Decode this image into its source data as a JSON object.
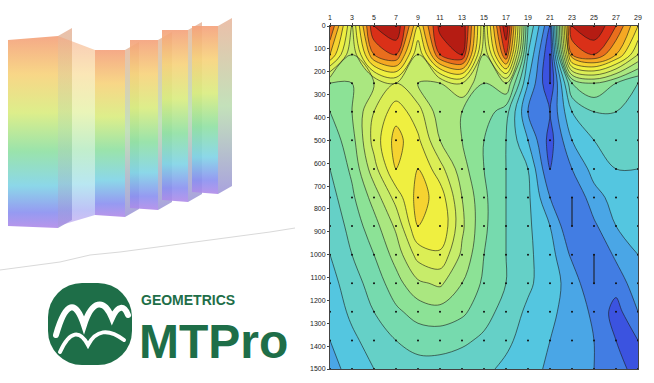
{
  "chart_data": {
    "type": "contour",
    "x": [
      1,
      3,
      5,
      7,
      9,
      11,
      13,
      15,
      17,
      19,
      21,
      23,
      25,
      27,
      29
    ],
    "y": [
      0,
      125,
      250,
      375,
      500,
      625,
      750,
      875,
      1000,
      1125,
      1250,
      1375,
      1500
    ],
    "z": [
      [
        85,
        60,
        90,
        95,
        70,
        92,
        95,
        60,
        95,
        40,
        20,
        90,
        95,
        85,
        70
      ],
      [
        75,
        55,
        80,
        85,
        60,
        85,
        90,
        55,
        85,
        35,
        15,
        80,
        85,
        75,
        60
      ],
      [
        50,
        50,
        55,
        60,
        55,
        55,
        60,
        50,
        55,
        30,
        15,
        45,
        50,
        45,
        40
      ],
      [
        45,
        50,
        60,
        68,
        62,
        52,
        50,
        48,
        42,
        25,
        20,
        35,
        40,
        40,
        38
      ],
      [
        42,
        48,
        62,
        72,
        66,
        55,
        50,
        45,
        40,
        30,
        18,
        30,
        35,
        38,
        36
      ],
      [
        40,
        46,
        58,
        70,
        70,
        62,
        52,
        45,
        40,
        35,
        20,
        25,
        32,
        35,
        35
      ],
      [
        38,
        44,
        52,
        62,
        72,
        68,
        55,
        46,
        40,
        36,
        25,
        20,
        28,
        32,
        33
      ],
      [
        36,
        42,
        48,
        56,
        70,
        70,
        56,
        46,
        40,
        36,
        30,
        20,
        24,
        30,
        32
      ],
      [
        35,
        40,
        45,
        52,
        62,
        64,
        54,
        45,
        40,
        36,
        32,
        24,
        20,
        26,
        30
      ],
      [
        33,
        38,
        42,
        48,
        54,
        56,
        50,
        44,
        40,
        36,
        32,
        28,
        20,
        22,
        28
      ],
      [
        32,
        36,
        40,
        44,
        47,
        48,
        46,
        42,
        38,
        34,
        31,
        28,
        24,
        18,
        25
      ],
      [
        30,
        34,
        37,
        40,
        42,
        42,
        41,
        39,
        36,
        33,
        30,
        27,
        25,
        20,
        20
      ],
      [
        28,
        32,
        35,
        37,
        38,
        38,
        37,
        36,
        34,
        32,
        29,
        27,
        25,
        22,
        18
      ]
    ],
    "zlim": [
      0,
      100
    ],
    "xlim": [
      1,
      29
    ],
    "xticks": [
      1,
      3,
      5,
      7,
      9,
      11,
      13,
      15,
      17,
      19,
      21,
      23,
      25,
      27,
      29
    ],
    "ylim": [
      1500,
      0
    ],
    "yticks": [
      0,
      100,
      200,
      300,
      400,
      500,
      600,
      700,
      800,
      900,
      1000,
      1100,
      1200,
      1300,
      1400,
      1500
    ],
    "annotations": [
      "GEOMETRICS",
      "MTPro"
    ]
  }
}
